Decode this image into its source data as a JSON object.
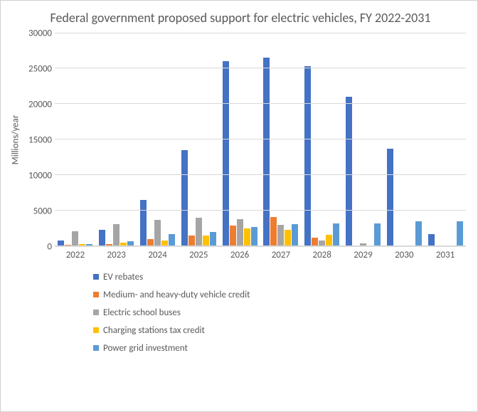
{
  "chart": {
    "type": "bar",
    "title": "Federal government proposed support for electric vehicles, FY 2022-2031",
    "title_fontsize": 18,
    "title_color": "#595959",
    "ylabel": "Millions/year",
    "ylabel_fontsize": 13,
    "tick_fontsize": 13,
    "legend_fontsize": 13,
    "background_color": "#ffffff",
    "grid_color": "#d9d9d9",
    "text_color": "#595959",
    "ylim": [
      0,
      30000
    ],
    "ytick_step": 5000,
    "yticks": [
      0,
      5000,
      10000,
      15000,
      20000,
      25000,
      30000
    ],
    "categories": [
      "2022",
      "2023",
      "2024",
      "2025",
      "2026",
      "2027",
      "2028",
      "2029",
      "2030",
      "2031"
    ],
    "series": [
      {
        "name": "EV rebates",
        "color": "#4472c4",
        "values": [
          800,
          2300,
          6500,
          13500,
          26000,
          26500,
          25300,
          21000,
          13700,
          1700
        ]
      },
      {
        "name": "Medium- and heavy-duty vehicle credit",
        "color": "#ed7d31",
        "values": [
          150,
          300,
          1000,
          1500,
          2900,
          4100,
          1200,
          0,
          0,
          0
        ]
      },
      {
        "name": "Electric school buses",
        "color": "#a5a5a5",
        "values": [
          2100,
          3100,
          3700,
          4000,
          3800,
          3000,
          800,
          400,
          0,
          0
        ]
      },
      {
        "name": "Charging stations tax credit",
        "color": "#ffc000",
        "values": [
          300,
          450,
          800,
          1500,
          2500,
          2300,
          1600,
          0,
          0,
          0
        ]
      },
      {
        "name": "Power grid investment",
        "color": "#5b9bd5",
        "values": [
          250,
          700,
          1700,
          2000,
          2700,
          3100,
          3200,
          3200,
          3500,
          3500
        ]
      }
    ]
  }
}
